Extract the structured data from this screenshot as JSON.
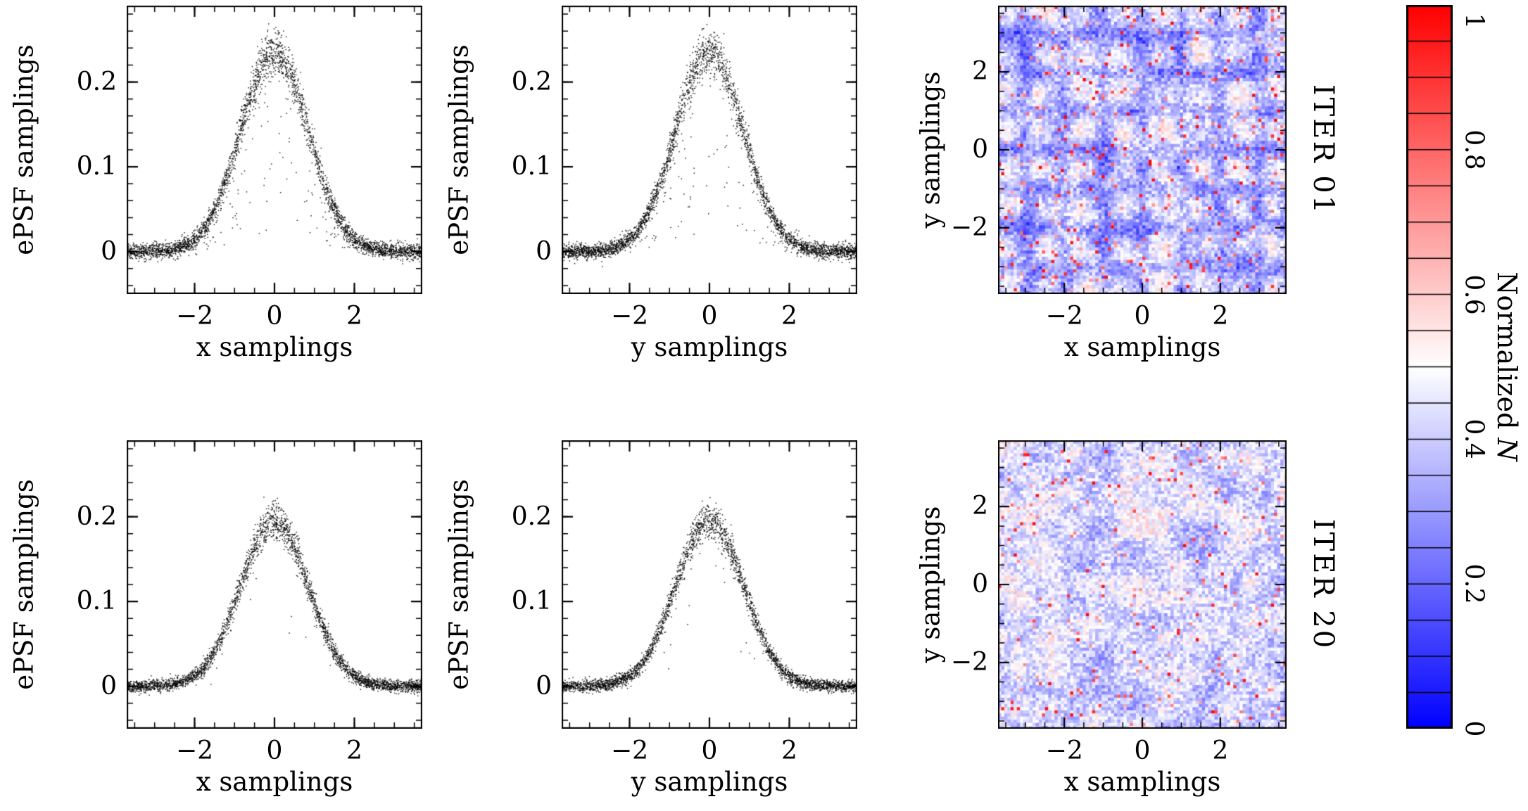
{
  "figure": {
    "row_labels": [
      "ITER 01",
      "ITER 20"
    ],
    "background": "#ffffff",
    "ink": "#000000"
  },
  "colorbar": {
    "label_prefix": "Normalized",
    "label_symbol": "N",
    "ticks": [
      0,
      0.2,
      0.4,
      0.6,
      0.8,
      1
    ],
    "tick_labels": [
      "0",
      "0.2",
      "0.4",
      "0.6",
      "0.8",
      "1"
    ],
    "range": [
      0,
      1
    ],
    "colormap": {
      "low": "#0000ff",
      "mid": "#ffffff",
      "high": "#ff0000"
    },
    "segment_lines_step": 0.05
  },
  "chart_data": [
    {
      "id": "iter01-x-profile",
      "type": "scatter",
      "row": "ITER 01",
      "xlabel": "x samplings",
      "ylabel": "ePSF samplings",
      "xlim": [
        -3.7,
        3.7
      ],
      "ylim": [
        -0.05,
        0.29
      ],
      "xticks": {
        "major": [
          -2,
          0,
          2
        ],
        "labels": [
          "−2",
          "0",
          "2"
        ],
        "minor_step": 0.5
      },
      "yticks": {
        "major": [
          0,
          0.1,
          0.2
        ],
        "labels": [
          "0",
          "0.1",
          "0.2"
        ],
        "minor_step": 0.02
      },
      "profile": {
        "shape": "gaussian",
        "center": 0,
        "peak": 0.235,
        "sigma": 0.85,
        "baseline": 0,
        "noise_sd": 0.0045,
        "outlier_fraction": 0.06
      },
      "n_points": 3400,
      "seed": 11,
      "marker": {
        "color": "#000000",
        "size": 1.5
      }
    },
    {
      "id": "iter01-y-profile",
      "type": "scatter",
      "row": "ITER 01",
      "xlabel": "y samplings",
      "ylabel": "ePSF samplings",
      "xlim": [
        -3.7,
        3.7
      ],
      "ylim": [
        -0.05,
        0.29
      ],
      "xticks": {
        "major": [
          -2,
          0,
          2
        ],
        "labels": [
          "−2",
          "0",
          "2"
        ],
        "minor_step": 0.5
      },
      "yticks": {
        "major": [
          0,
          0.1,
          0.2
        ],
        "labels": [
          "0",
          "0.1",
          "0.2"
        ],
        "minor_step": 0.02
      },
      "profile": {
        "shape": "gaussian",
        "center": 0,
        "peak": 0.235,
        "sigma": 0.85,
        "baseline": 0,
        "noise_sd": 0.0045,
        "outlier_fraction": 0.06
      },
      "n_points": 3400,
      "seed": 12,
      "marker": {
        "color": "#000000",
        "size": 1.5
      }
    },
    {
      "id": "iter01-sampling-density",
      "type": "heatmap",
      "row": "ITER 01",
      "xlabel": "x samplings",
      "ylabel": "y samplings",
      "xlim": [
        -3.7,
        3.7
      ],
      "ylim": [
        -3.7,
        3.7
      ],
      "xticks": {
        "major": [
          -2,
          0,
          2
        ],
        "labels": [
          "−2",
          "0",
          "2"
        ],
        "minor_step": 0.5
      },
      "yticks": {
        "major": [
          -2,
          0,
          2
        ],
        "labels": [
          "−2",
          "0",
          "2"
        ],
        "minor_step": 0.5
      },
      "grid_n": 92,
      "value_range": [
        0,
        1
      ],
      "pattern": {
        "kind": "lattice",
        "period": 1.0,
        "line_width": 0.18,
        "lattice_depth": 0.17,
        "base": 0.47,
        "coarse_noise": 0.13,
        "fine_noise": 0.1,
        "speckle_fraction": 0.045,
        "speckle_min": 0.62
      },
      "seed": 21
    },
    {
      "id": "iter20-x-profile",
      "type": "scatter",
      "row": "ITER 20",
      "xlabel": "x samplings",
      "ylabel": "ePSF samplings",
      "xlim": [
        -3.7,
        3.7
      ],
      "ylim": [
        -0.05,
        0.29
      ],
      "xticks": {
        "major": [
          -2,
          0,
          2
        ],
        "labels": [
          "−2",
          "0",
          "2"
        ],
        "minor_step": 0.5
      },
      "yticks": {
        "major": [
          0,
          0.1,
          0.2
        ],
        "labels": [
          "0",
          "0.1",
          "0.2"
        ],
        "minor_step": 0.02
      },
      "profile": {
        "shape": "gaussian",
        "center": 0,
        "peak": 0.195,
        "sigma": 0.85,
        "baseline": 0,
        "noise_sd": 0.0035,
        "outlier_fraction": 0.01
      },
      "n_points": 3200,
      "seed": 13,
      "marker": {
        "color": "#000000",
        "size": 1.5
      }
    },
    {
      "id": "iter20-y-profile",
      "type": "scatter",
      "row": "ITER 20",
      "xlabel": "y samplings",
      "ylabel": "ePSF samplings",
      "xlim": [
        -3.7,
        3.7
      ],
      "ylim": [
        -0.05,
        0.29
      ],
      "xticks": {
        "major": [
          -2,
          0,
          2
        ],
        "labels": [
          "−2",
          "0",
          "2"
        ],
        "minor_step": 0.5
      },
      "yticks": {
        "major": [
          0,
          0.1,
          0.2
        ],
        "labels": [
          "0",
          "0.1",
          "0.2"
        ],
        "minor_step": 0.02
      },
      "profile": {
        "shape": "gaussian",
        "center": 0,
        "peak": 0.195,
        "sigma": 0.85,
        "baseline": 0,
        "noise_sd": 0.0035,
        "outlier_fraction": 0.01
      },
      "n_points": 3200,
      "seed": 14,
      "marker": {
        "color": "#000000",
        "size": 1.5
      }
    },
    {
      "id": "iter20-sampling-density",
      "type": "heatmap",
      "row": "ITER 20",
      "xlabel": "x samplings",
      "ylabel": "y samplings",
      "xlim": [
        -3.7,
        3.7
      ],
      "ylim": [
        -3.7,
        3.7
      ],
      "xticks": {
        "major": [
          -2,
          0,
          2
        ],
        "labels": [
          "−2",
          "0",
          "2"
        ],
        "minor_step": 0.5
      },
      "yticks": {
        "major": [
          -2,
          0,
          2
        ],
        "labels": [
          "−2",
          "0",
          "2"
        ],
        "minor_step": 0.5
      },
      "grid_n": 92,
      "value_range": [
        0,
        1
      ],
      "pattern": {
        "kind": "uniform",
        "period": 1.0,
        "line_width": 0.18,
        "lattice_depth": 0,
        "base": 0.43,
        "coarse_noise": 0.11,
        "fine_noise": 0.11,
        "speckle_fraction": 0.03,
        "speckle_min": 0.62
      },
      "seed": 22
    }
  ]
}
